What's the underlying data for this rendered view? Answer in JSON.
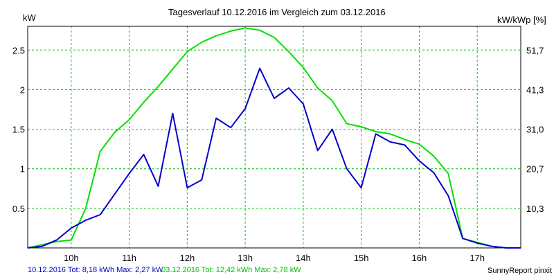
{
  "chart_data": {
    "type": "line",
    "title": "Tagesverlauf 10.12.2016 im Vergleich zum 03.12.2016",
    "ylabel_left": "kW",
    "ylabel_right": "kW/kWp [%]",
    "x_ticks": [
      "10h",
      "11h",
      "12h",
      "13h",
      "14h",
      "15h",
      "16h",
      "17h"
    ],
    "y_ticks_left": [
      "0.5",
      "1",
      "1.5",
      "2",
      "2.5"
    ],
    "y_ticks_right": [
      "10,3",
      "20,7",
      "31,0",
      "41,3",
      "51,7"
    ],
    "xlim": [
      9.25,
      17.75
    ],
    "ylim": [
      0,
      2.8
    ],
    "grid": true,
    "series": [
      {
        "name": "10.12.2016",
        "legend": "10.12.2016 Tot: 8,18 kWh Max: 2,27 kW",
        "color": "#0000cc",
        "x": [
          9.25,
          9.5,
          9.75,
          10.0,
          10.25,
          10.5,
          10.75,
          11.0,
          11.25,
          11.5,
          11.75,
          12.0,
          12.25,
          12.5,
          12.75,
          13.0,
          13.25,
          13.5,
          13.75,
          14.0,
          14.25,
          14.5,
          14.75,
          15.0,
          15.25,
          15.5,
          15.75,
          16.0,
          16.25,
          16.5,
          16.75,
          17.0,
          17.25,
          17.5,
          17.75
        ],
        "y": [
          0.0,
          0.02,
          0.1,
          0.25,
          0.35,
          0.42,
          0.68,
          0.94,
          1.18,
          0.78,
          1.7,
          0.76,
          0.86,
          1.64,
          1.52,
          1.76,
          2.27,
          1.89,
          2.02,
          1.82,
          1.23,
          1.5,
          1.0,
          0.76,
          1.44,
          1.34,
          1.3,
          1.1,
          0.95,
          0.66,
          0.12,
          0.06,
          0.02,
          0.0,
          0.0
        ]
      },
      {
        "name": "03.12.2016",
        "legend": "03.12.2016 Tot: 12,42 kWh Max: 2,78 kW",
        "color": "#00e000",
        "x": [
          9.25,
          9.5,
          9.75,
          10.0,
          10.25,
          10.5,
          10.75,
          11.0,
          11.25,
          11.5,
          11.75,
          12.0,
          12.25,
          12.5,
          12.75,
          13.0,
          13.25,
          13.5,
          13.75,
          14.0,
          14.25,
          14.5,
          14.75,
          15.0,
          15.25,
          15.5,
          15.75,
          16.0,
          16.25,
          16.5,
          16.75,
          17.0,
          17.25,
          17.5,
          17.75
        ],
        "y": [
          0.0,
          0.04,
          0.08,
          0.1,
          0.5,
          1.22,
          1.46,
          1.62,
          1.84,
          2.04,
          2.26,
          2.48,
          2.6,
          2.68,
          2.74,
          2.78,
          2.75,
          2.66,
          2.48,
          2.28,
          2.02,
          1.86,
          1.57,
          1.53,
          1.47,
          1.44,
          1.37,
          1.31,
          1.16,
          0.94,
          0.12,
          0.07,
          0.02,
          0.0,
          0.0
        ]
      }
    ],
    "legend_placement": "bottom-left"
  },
  "footer": {
    "legend_1": "10.12.2016 Tot: 8,18 kWh Max: 2,27 kW",
    "legend_2": "03.12.2016 Tot: 12,42 kWh Max: 2,78 kW",
    "credit": "SunnyReport pinxit"
  },
  "colors": {
    "grid": "#00c000",
    "background": "#ffffff",
    "axes": "#000000"
  }
}
